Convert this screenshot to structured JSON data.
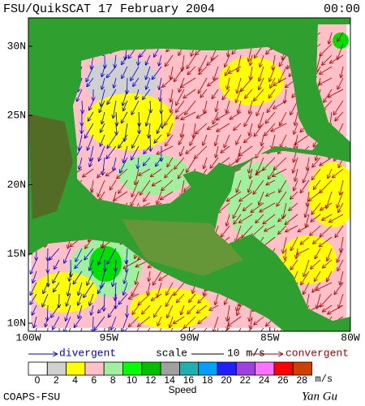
{
  "header": {
    "title": "FSU/QuikSCAT 17 February 2004",
    "time": "00:00"
  },
  "map": {
    "lat_labels": [
      "30N",
      "25N",
      "20N",
      "15N",
      "10N"
    ],
    "lon_labels": [
      "100W",
      "95W",
      "90W",
      "85W",
      "80W"
    ]
  },
  "legend": {
    "divergent": "divergent",
    "scale": "scale",
    "scale_value": "10 m/s",
    "convergent": "convergent"
  },
  "colorbar": {
    "title": "Speed",
    "unit": "m/s",
    "ticks": [
      "0",
      "2",
      "4",
      "6",
      "8",
      "10",
      "12",
      "14",
      "16",
      "18",
      "20",
      "22",
      "24",
      "26",
      "28"
    ],
    "colors": [
      "#ffffff",
      "#d0d0d0",
      "#ffff00",
      "#ffc0c8",
      "#a0f0a0",
      "#00ff00",
      "#00c000",
      "#a0a0a0",
      "#20b0b0",
      "#00a0ff",
      "#2020ff",
      "#a040e0",
      "#ff70ff",
      "#ff0000",
      "#d04000"
    ]
  },
  "footer": {
    "credit": "COAPS-FSU",
    "signature": "Yan Gu"
  }
}
